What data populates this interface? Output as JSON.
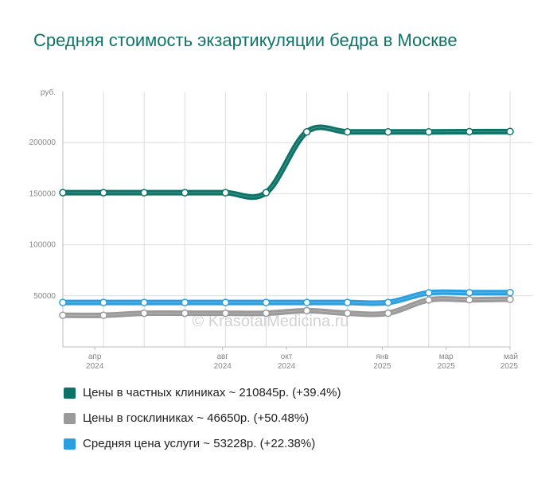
{
  "title": "Средняя стоимость экзартикуляции бедра в Москве",
  "watermark": "© KrasotaiMedicina.ru",
  "colors": {
    "private": "#0d7368",
    "public": "#9a9a9a",
    "average": "#2b9fe0",
    "grid": "#dddddd",
    "axis_text": "#888888"
  },
  "chart_data": {
    "type": "line",
    "y_unit": "руб.",
    "ylim": [
      0,
      250000
    ],
    "yticks": [
      50000,
      100000,
      150000,
      200000
    ],
    "ytick_labels": [
      "50000",
      "100000",
      "150000",
      "200000"
    ],
    "grid": true,
    "legend_position": "bottom",
    "x": [
      "2024-03",
      "2024-04",
      "2024-05",
      "2024-06",
      "2024-07",
      "2024-08",
      "2024-09",
      "2024-10",
      "2024-11",
      "2024-12",
      "2025-01",
      "2025-02"
    ],
    "xtick_labels": [
      {
        "month": "апр",
        "year": "2024"
      },
      {
        "month": "авг",
        "year": "2024"
      },
      {
        "month": "окт",
        "year": "2024"
      },
      {
        "month": "янв",
        "year": "2025"
      },
      {
        "month": "мар",
        "year": "2025"
      },
      {
        "month": "май",
        "year": "2025"
      }
    ],
    "series": [
      {
        "name": "Цены в частных клиниках",
        "legend": "Цены в частных клиниках ~ 210845р. (+39.4%)",
        "color": "#0d7368",
        "values": [
          151000,
          151000,
          151000,
          151000,
          151000,
          151000,
          210500,
          210500,
          210500,
          210500,
          210700,
          210845
        ]
      },
      {
        "name": "Цены в госклиниках",
        "legend": "Цены в госклиниках ~ 46650р. (+50.48%)",
        "color": "#9a9a9a",
        "values": [
          31000,
          31000,
          33000,
          33000,
          33000,
          33000,
          35500,
          33000,
          33000,
          46000,
          46200,
          46650
        ]
      },
      {
        "name": "Средняя цена услуги",
        "legend": "Средняя цена услуги ~ 53228р. (+22.38%)",
        "color": "#2b9fe0",
        "values": [
          43500,
          43500,
          43500,
          43500,
          43500,
          43500,
          43500,
          43500,
          43500,
          53000,
          53100,
          53228
        ]
      }
    ]
  }
}
